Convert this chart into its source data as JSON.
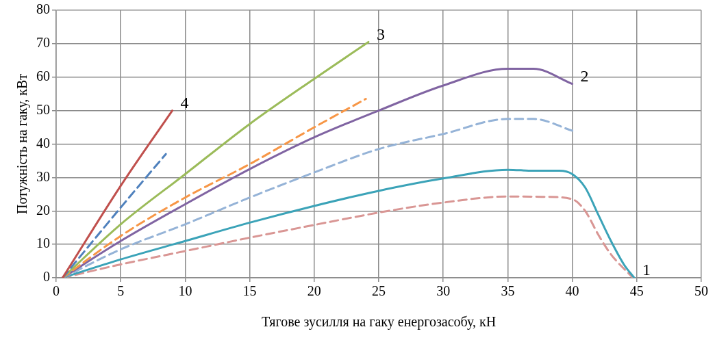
{
  "chart_data": {
    "type": "line",
    "xlabel": "Тягове зусилля на гаку енергозасобу, кН",
    "ylabel": "Потужність на гаку, кВт",
    "xlim": [
      0,
      50
    ],
    "xticks": [
      0,
      5,
      10,
      15,
      20,
      25,
      30,
      35,
      40,
      45,
      50
    ],
    "ylim": [
      0,
      80
    ],
    "yticks": [
      0,
      10,
      20,
      30,
      40,
      50,
      60,
      70,
      80
    ],
    "grid": true,
    "legend": false,
    "marker": "none",
    "series": [
      {
        "color": "#c0504d",
        "line_style": "solid",
        "x": [
          0.5,
          5,
          9
        ],
        "values": [
          0,
          27.5,
          50
        ]
      },
      {
        "color": "#4f81bd",
        "line_style": "dashed",
        "x": [
          0.5,
          5,
          8.5
        ],
        "values": [
          0,
          21,
          37
        ]
      },
      {
        "color": "#9bbb59",
        "line_style": "solid",
        "x": [
          0.5,
          5,
          10,
          15,
          20,
          24.2
        ],
        "values": [
          0,
          16,
          31,
          46,
          59.5,
          70.5
        ]
      },
      {
        "color": "#f79646",
        "line_style": "dashed",
        "x": [
          0.5,
          5,
          10,
          15,
          20,
          24
        ],
        "values": [
          0,
          12.5,
          24,
          34,
          45,
          53.5
        ]
      },
      {
        "color": "#8064a2",
        "line_style": "solid",
        "x": [
          0.5,
          5,
          10,
          15,
          20,
          25,
          30,
          35,
          37,
          40
        ],
        "values": [
          0,
          11,
          22,
          32.5,
          42,
          50,
          57.5,
          62.5,
          62.5,
          58
        ]
      },
      {
        "color": "#95b3d7",
        "line_style": "dashed",
        "x": [
          0.5,
          5,
          10,
          15,
          20,
          25,
          30,
          35,
          37,
          40
        ],
        "values": [
          0,
          8.5,
          16,
          24,
          31.5,
          38.5,
          43,
          47.5,
          47.5,
          44
        ]
      },
      {
        "color": "#3ba3b8",
        "line_style": "solid",
        "x": [
          0.5,
          5,
          10,
          15,
          20,
          25,
          30,
          35,
          37,
          39,
          40,
          41,
          42,
          43,
          44,
          44.8
        ],
        "values": [
          0,
          5.5,
          11,
          16.5,
          21.5,
          26,
          29.7,
          32.3,
          32,
          32,
          31,
          27,
          19,
          11,
          4,
          0
        ]
      },
      {
        "color": "#d99694",
        "line_style": "dashed",
        "x": [
          0.5,
          5,
          10,
          15,
          20,
          25,
          30,
          35,
          38,
          40,
          41,
          42,
          43,
          44.7
        ],
        "values": [
          0,
          4,
          8,
          12,
          15.8,
          19.5,
          22.5,
          24.3,
          24.2,
          23.5,
          20,
          13,
          7,
          0
        ]
      }
    ],
    "annotations": [
      {
        "text": "1",
        "x": 44.8,
        "y": 0
      },
      {
        "text": "2",
        "x": 40,
        "y": 58
      },
      {
        "text": "3",
        "x": 24.2,
        "y": 70.5
      },
      {
        "text": "4",
        "x": 9,
        "y": 50
      }
    ]
  }
}
